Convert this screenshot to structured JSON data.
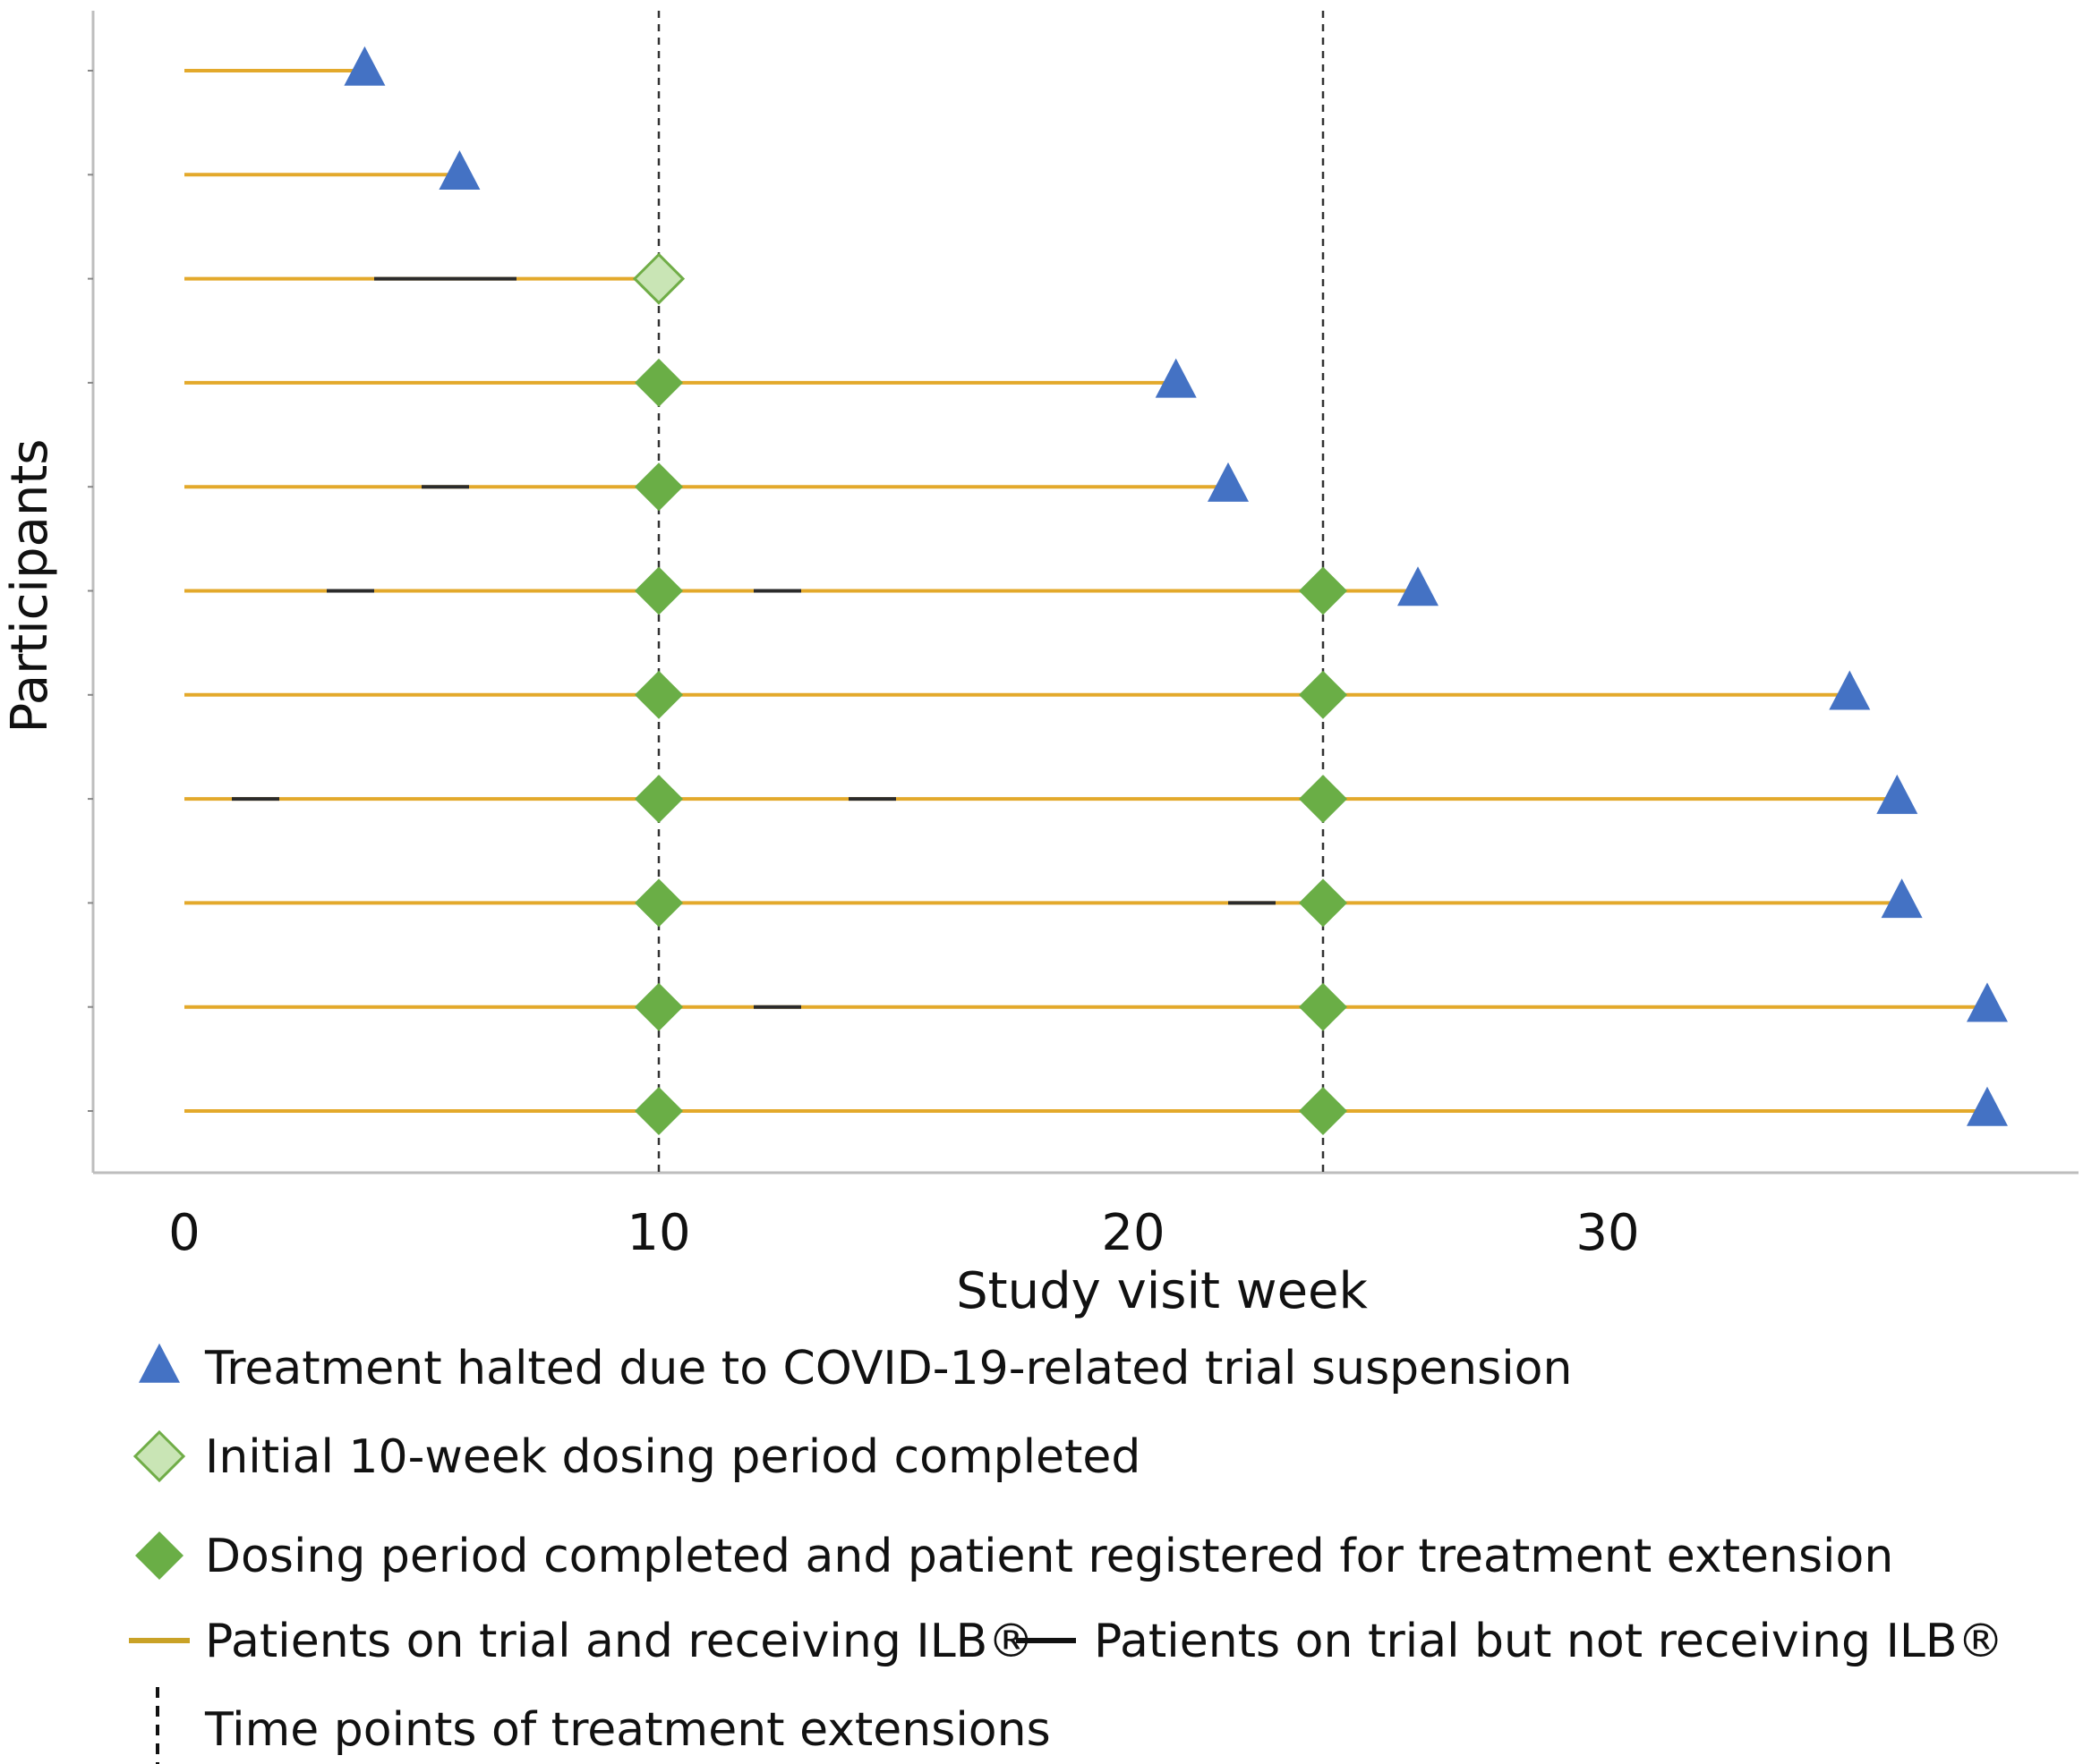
{
  "chart_data": {
    "type": "timeline",
    "xlabel": "Study visit week",
    "ylabel": "Participants",
    "xlim": [
      -1.9,
      39.9
    ],
    "xticks": [
      "0",
      "10",
      "20",
      "30"
    ],
    "extension_time_points": [
      10,
      24
    ],
    "participants": [
      {
        "end": 3.8,
        "end_marker": "halted",
        "off_periods": [],
        "extension_markers": []
      },
      {
        "end": 5.8,
        "end_marker": "halted",
        "off_periods": [],
        "extension_markers": []
      },
      {
        "end": 10,
        "end_marker": "initial",
        "off_periods": [
          [
            4,
            7
          ]
        ],
        "extension_markers": []
      },
      {
        "end": 20.9,
        "end_marker": "halted",
        "off_periods": [],
        "extension_markers": [
          10
        ]
      },
      {
        "end": 22,
        "end_marker": "halted",
        "off_periods": [
          [
            5,
            6
          ]
        ],
        "extension_markers": [
          10
        ]
      },
      {
        "end": 26,
        "end_marker": "halted",
        "off_periods": [
          [
            3,
            4
          ],
          [
            12,
            13
          ]
        ],
        "extension_markers": [
          10,
          24
        ]
      },
      {
        "end": 35.1,
        "end_marker": "halted",
        "off_periods": [],
        "extension_markers": [
          10,
          24
        ]
      },
      {
        "end": 36.1,
        "end_marker": "halted",
        "off_periods": [
          [
            1,
            2
          ],
          [
            14,
            15
          ]
        ],
        "extension_markers": [
          10,
          24
        ]
      },
      {
        "end": 36.2,
        "end_marker": "halted",
        "off_periods": [
          [
            22,
            23
          ]
        ],
        "extension_markers": [
          10,
          24
        ]
      },
      {
        "end": 38,
        "end_marker": "halted",
        "off_periods": [
          [
            12,
            13
          ]
        ],
        "extension_markers": [
          10,
          24
        ]
      },
      {
        "end": 38,
        "end_marker": "halted",
        "off_periods": [],
        "extension_markers": [
          10,
          24
        ]
      }
    ],
    "legend": [
      {
        "symbol": "blue-triangle",
        "label": "Treatment halted due to COVID-19-related trial suspension"
      },
      {
        "symbol": "light-green-diamond",
        "label": "Initial 10-week dosing period completed"
      },
      {
        "symbol": "green-diamond",
        "label": "Dosing period completed and patient registered for treatment extension"
      },
      {
        "symbol": "orange-line",
        "label": "Patients on trial and receiving ILB®"
      },
      {
        "symbol": "black-line",
        "label": "Patients on trial but not receiving ILB®"
      },
      {
        "symbol": "dashed-line",
        "label": "Time points of treatment extensions"
      }
    ],
    "colors": {
      "on_treatment": "#E3A92B",
      "off_treatment": "#2b2b2b",
      "halted": "#4472C4",
      "initial_fill": "#C9E5B5",
      "initial_stroke": "#70AD47",
      "extension": "#6AAE46",
      "axis": "#bdbdbd",
      "dashed": "#333333"
    }
  }
}
